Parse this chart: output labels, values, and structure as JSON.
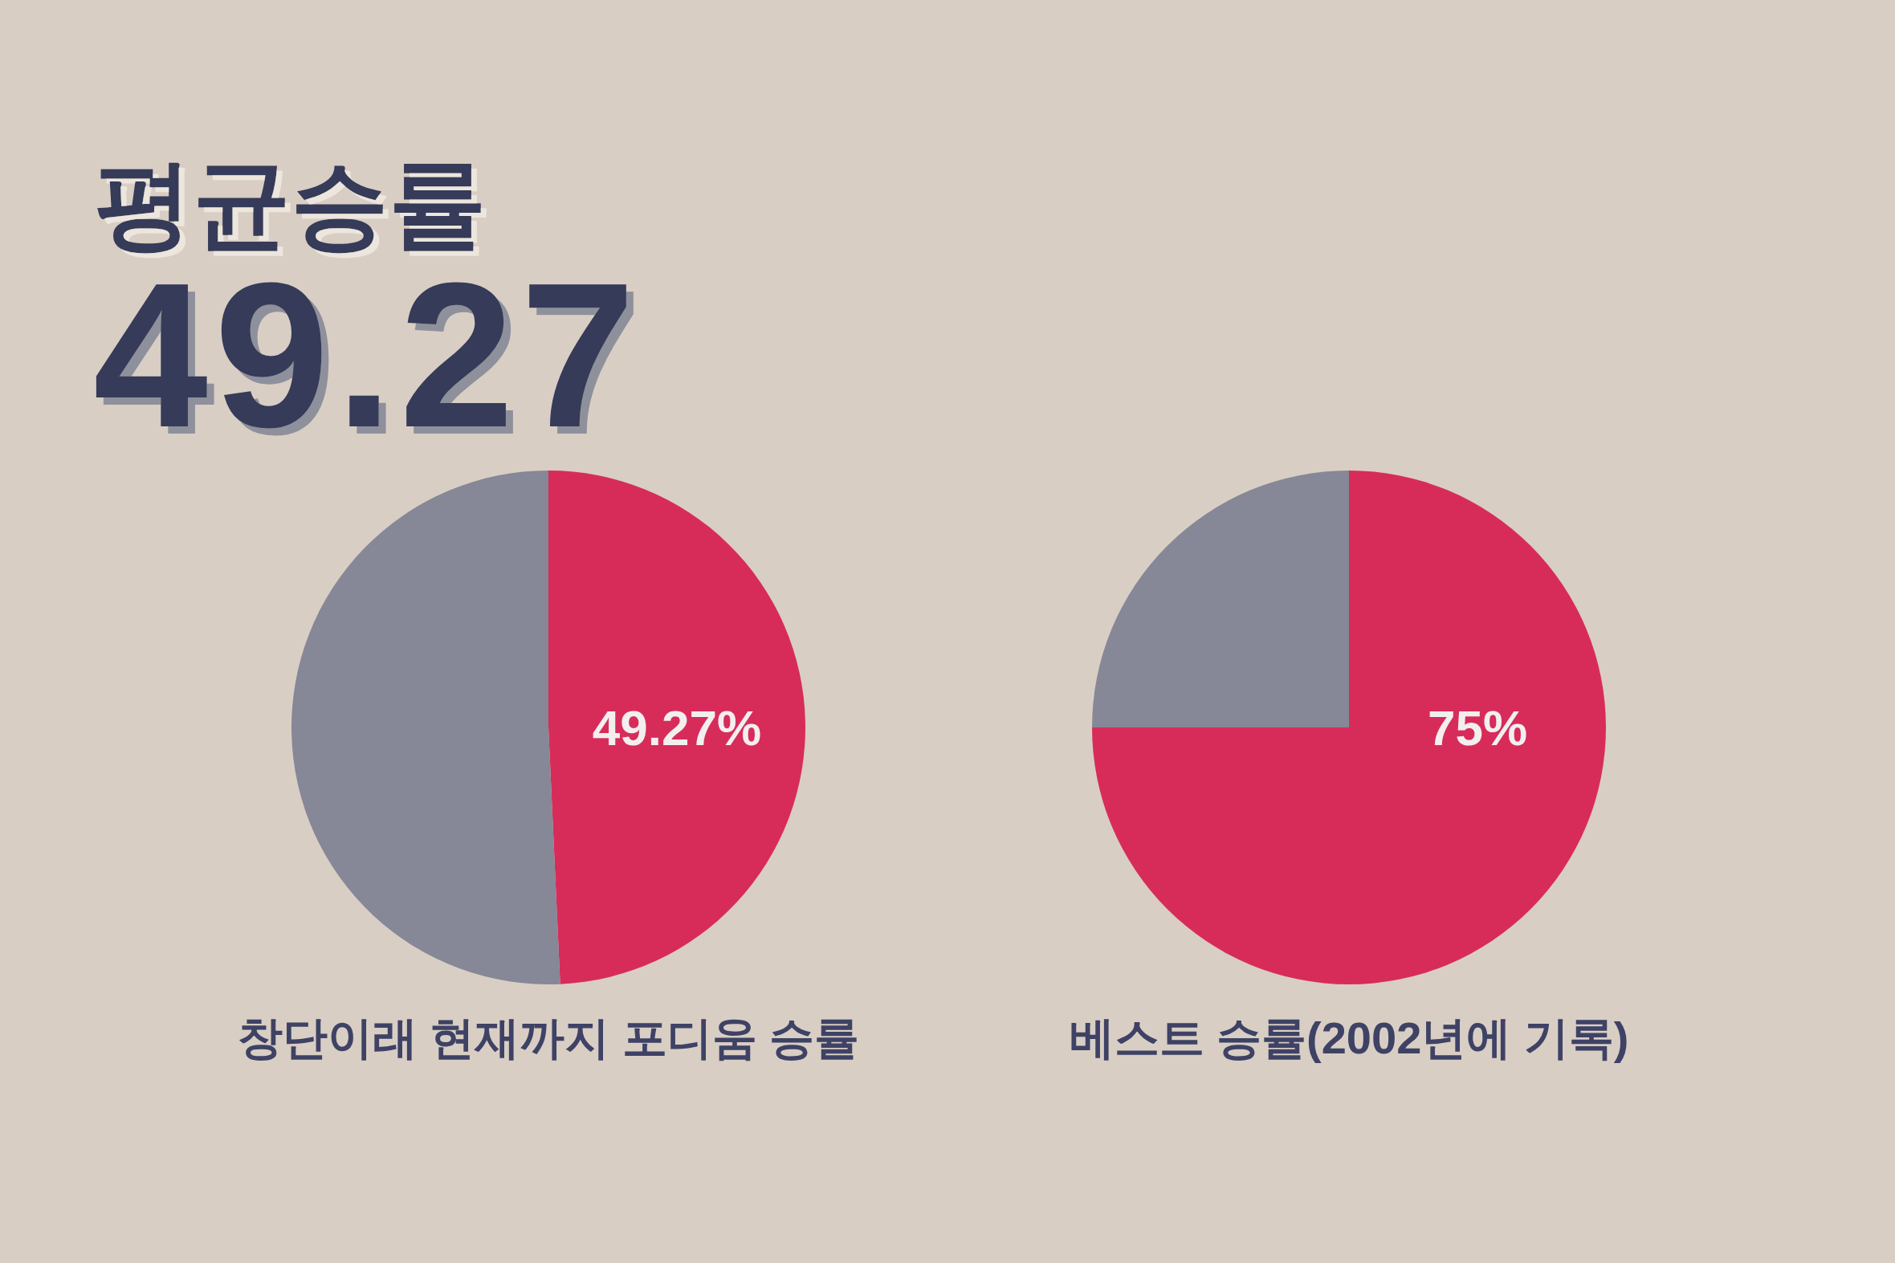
{
  "chart_data": [
    {
      "type": "other",
      "title": "평균승률",
      "subtitle": "49.27"
    },
    {
      "type": "pie",
      "title": "창단이래 현재까지 포디움 승률",
      "categories": [
        null,
        null
      ],
      "values": [
        49.27,
        50.73
      ],
      "colors": [
        "#d72c5a",
        "#868797"
      ],
      "value_labels": [
        "49.27%",
        null
      ]
    },
    {
      "type": "pie",
      "title": "베스트 승률(2002년에 기록)",
      "categories": [
        null,
        null
      ],
      "values": [
        75,
        25
      ],
      "colors": [
        "#d72c5a",
        "#868797"
      ],
      "value_labels": [
        "75%",
        null
      ]
    }
  ]
}
